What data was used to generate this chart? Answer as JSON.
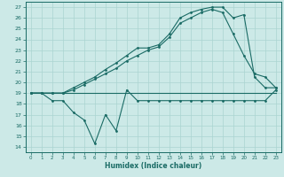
{
  "bg_color": "#cce9e7",
  "grid_color": "#aad4d1",
  "line_color": "#1a6b65",
  "xlabel": "Humidex (Indice chaleur)",
  "xlim": [
    -0.5,
    23.5
  ],
  "ylim": [
    13.5,
    27.5
  ],
  "yticks": [
    14,
    15,
    16,
    17,
    18,
    19,
    20,
    21,
    22,
    23,
    24,
    25,
    26,
    27
  ],
  "xticks": [
    0,
    1,
    2,
    3,
    4,
    5,
    6,
    7,
    8,
    9,
    10,
    11,
    12,
    13,
    14,
    15,
    16,
    17,
    18,
    19,
    20,
    21,
    22,
    23
  ],
  "line1_x": [
    0,
    1,
    2,
    3,
    4,
    5,
    6,
    7,
    8,
    9,
    10,
    11,
    12,
    13,
    14,
    15,
    16,
    17,
    18,
    19,
    20,
    21,
    22,
    23
  ],
  "line1_y": [
    19,
    19,
    19,
    19,
    19,
    19,
    19,
    19,
    19,
    19,
    19,
    19,
    19,
    19,
    19,
    19,
    19,
    19,
    19,
    19,
    19,
    19,
    19,
    19
  ],
  "line2_x": [
    0,
    1,
    2,
    3,
    4,
    5,
    6,
    7,
    8,
    9,
    10,
    11,
    12,
    13,
    14,
    15,
    16,
    17,
    18,
    19,
    20,
    21,
    22,
    23
  ],
  "line2_y": [
    19,
    19,
    18.3,
    18.3,
    17.2,
    16.5,
    14.3,
    17.0,
    15.5,
    19.3,
    18.3,
    18.3,
    18.3,
    18.3,
    18.3,
    18.3,
    18.3,
    18.3,
    18.3,
    18.3,
    18.3,
    18.3,
    18.3,
    19.3
  ],
  "line3_x": [
    0,
    1,
    2,
    3,
    4,
    5,
    6,
    7,
    8,
    9,
    10,
    11,
    12,
    13,
    14,
    15,
    16,
    17,
    18,
    19,
    20,
    21,
    22,
    23
  ],
  "line3_y": [
    19,
    19,
    19,
    19,
    19.5,
    20.0,
    20.5,
    21.2,
    21.8,
    22.5,
    23.2,
    23.2,
    23.5,
    24.5,
    26.0,
    26.5,
    26.8,
    27.0,
    27.0,
    26.0,
    26.3,
    20.5,
    19.5,
    19.5
  ],
  "line4_x": [
    0,
    1,
    2,
    3,
    4,
    5,
    6,
    7,
    8,
    9,
    10,
    11,
    12,
    13,
    14,
    15,
    16,
    17,
    18,
    19,
    20,
    21,
    22,
    23
  ],
  "line4_y": [
    19,
    19,
    19,
    19,
    19.3,
    19.8,
    20.3,
    20.8,
    21.3,
    22.0,
    22.5,
    23.0,
    23.3,
    24.2,
    25.5,
    26.0,
    26.5,
    26.8,
    26.5,
    24.5,
    22.5,
    20.8,
    20.5,
    19.5
  ]
}
